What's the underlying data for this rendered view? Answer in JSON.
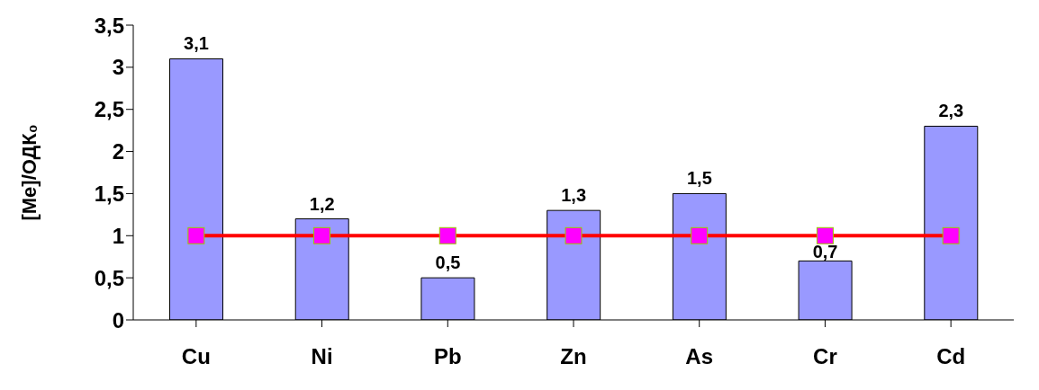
{
  "chart_data": {
    "type": "bar",
    "ylabel": "[Me]/ОДК₀",
    "categories": [
      "Cu",
      "Ni",
      "Pb",
      "Zn",
      "As",
      "Cr",
      "Cd"
    ],
    "series": [
      {
        "color": "#9999ff",
        "values": [
          3.1,
          1.2,
          0.5,
          1.3,
          1.5,
          0.7,
          2.3
        ],
        "value_labels": [
          "3,1",
          "1,2",
          "0,5",
          "1,3",
          "1,5",
          "0,7",
          "2,3"
        ]
      },
      {
        "type": "line",
        "color": "#ff0000",
        "colors": [
          "#ff00ff",
          "#ff00ff",
          "#ff00ff",
          "#ff00ff",
          "#ff00ff",
          "#ff00ff",
          "#ff00ff"
        ],
        "values": [
          1,
          1,
          1,
          1,
          1,
          1,
          1
        ],
        "marker": "square"
      }
    ],
    "ylim": [
      0,
      3.5
    ],
    "yticks": [
      0,
      {
        "value": 0.5,
        "label": "0,5"
      },
      1,
      {
        "value": 1.5,
        "label": "1,5"
      },
      2,
      {
        "value": 2.5,
        "label": "2,5"
      },
      3,
      {
        "value": 3.5,
        "label": "3,5"
      }
    ],
    "grid": false,
    "legend": false
  }
}
